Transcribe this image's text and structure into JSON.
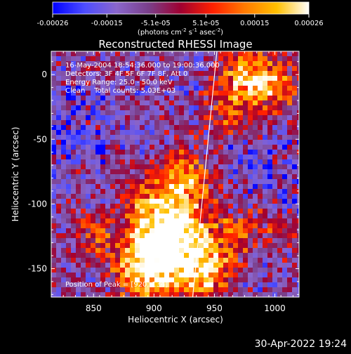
{
  "chart_data": {
    "type": "heatmap",
    "title": "Reconstructed RHESSI Image",
    "xlabel": "Heliocentric X (arcsec)",
    "ylabel": "Heliocentric Y (arcsec)",
    "xlim": [
      815,
      1020
    ],
    "ylim": [
      -172,
      18
    ],
    "x_ticks": [
      850,
      900,
      950,
      1000
    ],
    "x_tick_labels": [
      "850",
      "900",
      "950",
      "1000"
    ],
    "y_ticks": [
      0,
      -50,
      -100,
      -150
    ],
    "y_tick_labels": [
      "0",
      "-50",
      "-100",
      "-150"
    ],
    "colorbar": {
      "range": [
        -0.00026,
        0.00026
      ],
      "ticks": [
        -0.00026,
        -0.00015,
        -5.1e-05,
        5.1e-05,
        0.00015,
        0.00026
      ],
      "tick_labels": [
        "-0.00026",
        "-0.00015",
        "-5.1e-05",
        "5.1e-05",
        "0.00015",
        "0.00026"
      ],
      "unit_prefix": "(photons cm",
      "unit_exp1": "-2",
      "unit_mid1": " s",
      "unit_exp2": "-1",
      "unit_mid2": " asec",
      "unit_exp3": "-2",
      "unit_suffix": ")",
      "colors": [
        "#0000ff",
        "#4d4dff",
        "#8a66cc",
        "#7a3f8a",
        "#a00030",
        "#ff2000",
        "#ff7a00",
        "#ffc000",
        "#ffffff"
      ]
    },
    "annotations": [
      "16-May-2004 18:54:36.000 to 19:00:36.000",
      "Detectors: 3F 4F 5F 6F 7F 8F, Att 0",
      "Energy Range: 25.0 - 50.0 keV",
      "Clean    Total counts: 5.03E+03"
    ],
    "peak_label": "Position of Peak = [920,-134]",
    "limb_line": [
      [
        932,
        -172
      ],
      [
        952,
        18
      ]
    ],
    "intensity_sources": [
      {
        "x": 920,
        "y": -134,
        "sigma": 22,
        "amp": 1.0
      },
      {
        "x": 905,
        "y": -110,
        "sigma": 20,
        "amp": 0.7
      },
      {
        "x": 890,
        "y": -150,
        "sigma": 18,
        "amp": 0.75
      },
      {
        "x": 925,
        "y": -80,
        "sigma": 15,
        "amp": 0.6
      },
      {
        "x": 945,
        "y": -155,
        "sigma": 14,
        "amp": 0.55
      },
      {
        "x": 975,
        "y": 0,
        "sigma": 16,
        "amp": 0.75
      },
      {
        "x": 1000,
        "y": -10,
        "sigma": 14,
        "amp": 0.6
      },
      {
        "x": 960,
        "y": -30,
        "sigma": 12,
        "amp": 0.45
      },
      {
        "x": 970,
        "y": -120,
        "sigma": 14,
        "amp": 0.45
      },
      {
        "x": 1010,
        "y": -120,
        "sigma": 10,
        "amp": 0.35
      },
      {
        "x": 850,
        "y": -125,
        "sigma": 12,
        "amp": 0.4
      }
    ]
  },
  "footer": {
    "timestamp": "30-Apr-2022 19:24"
  }
}
